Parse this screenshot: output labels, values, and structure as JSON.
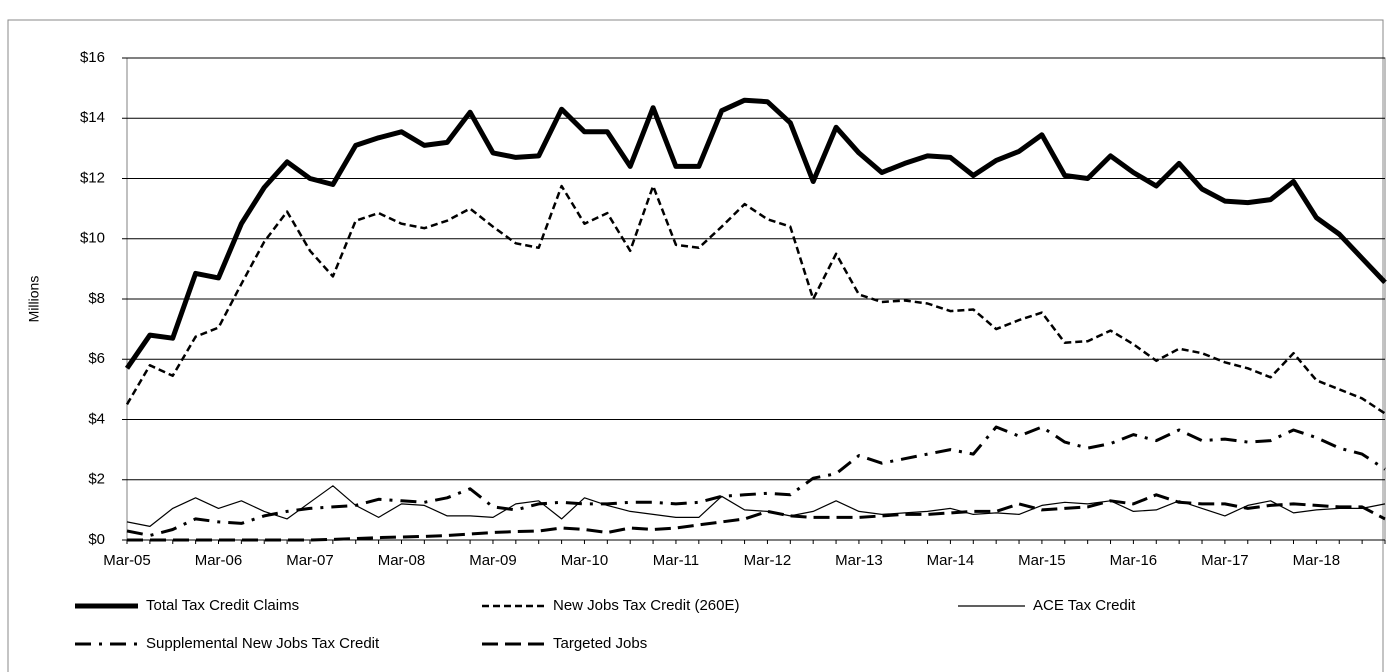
{
  "chart_data": {
    "type": "line",
    "y_label": "Millions",
    "categories": [
      "Mar-05",
      null,
      null,
      null,
      "Mar-06",
      null,
      null,
      null,
      "Mar-07",
      null,
      null,
      null,
      "Mar-08",
      null,
      null,
      null,
      "Mar-09",
      null,
      null,
      null,
      "Mar-10",
      null,
      null,
      null,
      "Mar-11",
      null,
      null,
      null,
      "Mar-12",
      null,
      null,
      null,
      "Mar-13",
      null,
      null,
      null,
      "Mar-14",
      null,
      null,
      null,
      "Mar-15",
      null,
      null,
      null,
      "Mar-16",
      null,
      null,
      null,
      "Mar-17",
      null,
      null,
      null,
      "Mar-18",
      null,
      null,
      null
    ],
    "ylim": [
      0,
      16
    ],
    "yticks": [
      {
        "value": 0,
        "label": "$0"
      },
      {
        "value": 2,
        "label": "$2"
      },
      {
        "value": 4,
        "label": "$4"
      },
      {
        "value": 6,
        "label": "$6"
      },
      {
        "value": 8,
        "label": "$8"
      },
      {
        "value": 10,
        "label": "$10"
      },
      {
        "value": 12,
        "label": "$12"
      },
      {
        "value": 14,
        "label": "$14"
      },
      {
        "value": 16,
        "label": "$16"
      }
    ],
    "grid": true,
    "series": [
      {
        "name": "Total Tax Credit Claims",
        "color": "#000000",
        "width": 5,
        "dash": "none",
        "values": [
          5.7,
          6.8,
          6.7,
          8.85,
          8.7,
          10.5,
          11.7,
          12.55,
          12.0,
          11.8,
          13.1,
          13.35,
          13.55,
          13.1,
          13.2,
          14.2,
          12.85,
          12.7,
          12.75,
          14.3,
          13.55,
          13.55,
          12.4,
          14.35,
          12.4,
          12.4,
          14.25,
          14.6,
          14.55,
          13.85,
          11.9,
          13.7,
          12.85,
          12.2,
          12.5,
          12.75,
          12.7,
          12.1,
          12.6,
          12.9,
          13.45,
          12.1,
          12.0,
          12.75,
          12.2,
          11.75,
          12.5,
          11.65,
          11.25,
          11.2,
          11.3,
          11.9,
          10.7,
          10.15,
          9.35,
          8.55
        ]
      },
      {
        "name": "New Jobs Tax Credit (260E)",
        "color": "#000000",
        "width": 2.5,
        "dash": "7,4",
        "values": [
          4.5,
          5.8,
          5.45,
          6.75,
          7.05,
          8.5,
          9.9,
          10.9,
          9.6,
          8.75,
          10.6,
          10.85,
          10.5,
          10.35,
          10.6,
          11.0,
          10.4,
          9.85,
          9.7,
          11.75,
          10.5,
          10.85,
          9.6,
          11.75,
          9.8,
          9.7,
          10.4,
          11.15,
          10.65,
          10.4,
          8.0,
          9.5,
          8.15,
          7.9,
          7.95,
          7.85,
          7.6,
          7.65,
          7.0,
          7.3,
          7.55,
          6.55,
          6.6,
          6.95,
          6.5,
          5.95,
          6.35,
          6.2,
          5.9,
          5.7,
          5.4,
          6.2,
          5.3,
          5.0,
          4.7,
          4.2
        ]
      },
      {
        "name": "ACE Tax Credit",
        "color": "#000000",
        "width": 1.2,
        "dash": "none",
        "values": [
          0.6,
          0.45,
          1.05,
          1.4,
          1.05,
          1.3,
          0.95,
          0.7,
          1.25,
          1.8,
          1.15,
          0.75,
          1.2,
          1.15,
          0.8,
          0.8,
          0.75,
          1.2,
          1.3,
          0.7,
          1.4,
          1.15,
          0.95,
          0.85,
          0.75,
          0.75,
          1.45,
          1.0,
          0.95,
          0.8,
          0.95,
          1.3,
          0.95,
          0.85,
          0.9,
          0.95,
          1.05,
          0.85,
          0.9,
          0.85,
          1.15,
          1.25,
          1.2,
          1.3,
          0.95,
          1.0,
          1.3,
          1.05,
          0.8,
          1.15,
          1.3,
          0.9,
          1.0,
          1.05,
          1.05,
          1.2
        ]
      },
      {
        "name": "Supplemental New Jobs Tax Credit",
        "color": "#000000",
        "width": 3,
        "dash": "16,8,3,8",
        "values": [
          0.3,
          0.15,
          0.35,
          0.7,
          0.6,
          0.55,
          0.8,
          0.95,
          1.05,
          1.1,
          1.15,
          1.35,
          1.3,
          1.25,
          1.4,
          1.7,
          1.1,
          1.0,
          1.2,
          1.25,
          1.2,
          1.2,
          1.25,
          1.25,
          1.2,
          1.25,
          1.45,
          1.5,
          1.55,
          1.5,
          2.05,
          2.2,
          2.8,
          2.55,
          2.7,
          2.85,
          3.0,
          2.85,
          3.75,
          3.45,
          3.75,
          3.25,
          3.05,
          3.2,
          3.5,
          3.3,
          3.65,
          3.3,
          3.35,
          3.25,
          3.3,
          3.65,
          3.4,
          3.05,
          2.85,
          2.35
        ]
      },
      {
        "name": "Targeted Jobs",
        "color": "#000000",
        "width": 3,
        "dash": "16,7",
        "values": [
          0.0,
          0.0,
          0.0,
          0.0,
          0.0,
          0.0,
          0.0,
          0.0,
          0.0,
          0.02,
          0.05,
          0.08,
          0.1,
          0.12,
          0.15,
          0.2,
          0.25,
          0.28,
          0.3,
          0.4,
          0.35,
          0.25,
          0.4,
          0.35,
          0.4,
          0.5,
          0.6,
          0.7,
          0.95,
          0.8,
          0.75,
          0.75,
          0.75,
          0.8,
          0.85,
          0.85,
          0.9,
          0.95,
          0.95,
          1.2,
          1.0,
          1.05,
          1.1,
          1.3,
          1.2,
          1.5,
          1.25,
          1.2,
          1.2,
          1.05,
          1.15,
          1.2,
          1.15,
          1.1,
          1.1,
          0.7
        ]
      }
    ]
  }
}
